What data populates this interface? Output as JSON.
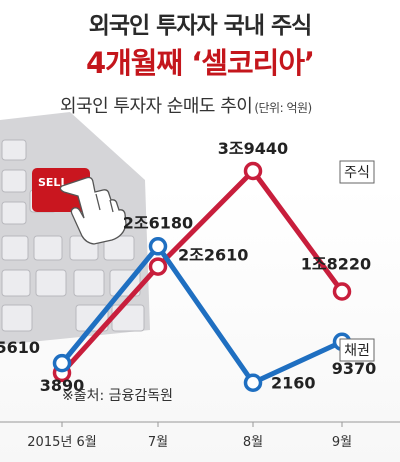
{
  "headline": {
    "line1": "외국인 투자자 국내 주식",
    "line2": "4개월째 ‘셀코리아’"
  },
  "subtitle": "외국인 투자자 순매도 추이",
  "unit": "(단위: 억원)",
  "source": "※출처: 금융감독원",
  "illustration": {
    "key_label": "SELL",
    "icon": "hand-pointer-icon"
  },
  "colors": {
    "stock": "#c81e3c",
    "bond": "#1f6fc1"
  },
  "chart_data": {
    "type": "line",
    "categories": [
      "2015년 6월",
      "7월",
      "8월",
      "9월"
    ],
    "series": [
      {
        "name": "주식",
        "values": [
          3890,
          22610,
          39440,
          18220
        ],
        "labels": [
          "3890",
          "2조2610",
          "3조9440",
          "1조8220"
        ]
      },
      {
        "name": "채권",
        "values": [
          5610,
          26180,
          2160,
          9370
        ],
        "labels": [
          "5610",
          "2조6180",
          "2160",
          "9370"
        ]
      }
    ],
    "legend": "inline-right",
    "grid": false
  }
}
